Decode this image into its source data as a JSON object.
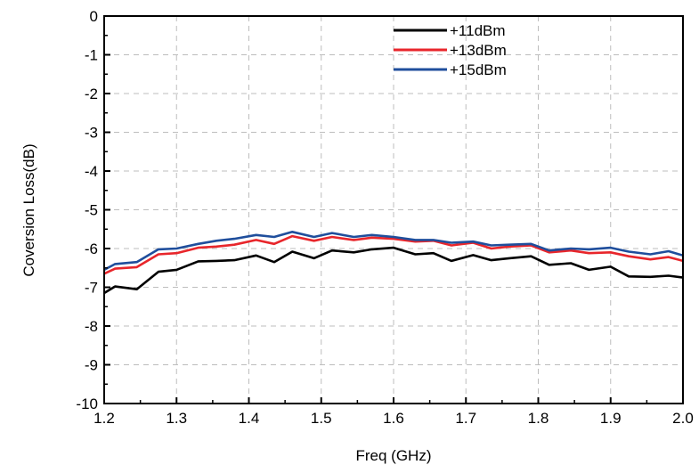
{
  "chart_data": {
    "type": "line",
    "title": "",
    "xlabel": "Freq (GHz)",
    "ylabel": "Coversion Loss(dB)",
    "xlim": [
      1.2,
      2.0
    ],
    "ylim": [
      -10,
      0
    ],
    "grid": true,
    "legend_position": "top-right",
    "x_ticks": [
      "1.2",
      "1.3",
      "1.4",
      "1.5",
      "1.6",
      "1.7",
      "1.8",
      "1.9",
      "2.0"
    ],
    "y_ticks": [
      "0",
      "-1",
      "-2",
      "-3",
      "-4",
      "-5",
      "-6",
      "-7",
      "-8",
      "-9",
      "-10"
    ],
    "x": [
      1.2,
      1.215,
      1.245,
      1.275,
      1.3,
      1.33,
      1.355,
      1.38,
      1.41,
      1.435,
      1.46,
      1.49,
      1.515,
      1.545,
      1.57,
      1.6,
      1.63,
      1.655,
      1.68,
      1.71,
      1.735,
      1.76,
      1.79,
      1.815,
      1.845,
      1.87,
      1.9,
      1.925,
      1.955,
      1.98,
      2.0
    ],
    "series": [
      {
        "name": "+11dBm",
        "color": "#000000",
        "values": [
          -7.15,
          -6.98,
          -7.05,
          -6.6,
          -6.55,
          -6.33,
          -6.32,
          -6.3,
          -6.18,
          -6.35,
          -6.08,
          -6.25,
          -6.05,
          -6.1,
          -6.02,
          -5.98,
          -6.15,
          -6.12,
          -6.32,
          -6.17,
          -6.3,
          -6.25,
          -6.2,
          -6.42,
          -6.38,
          -6.55,
          -6.47,
          -6.72,
          -6.73,
          -6.7,
          -6.75
        ]
      },
      {
        "name": "+13dBm",
        "color": "#e8262b",
        "values": [
          -6.65,
          -6.52,
          -6.48,
          -6.15,
          -6.12,
          -5.98,
          -5.95,
          -5.9,
          -5.78,
          -5.88,
          -5.68,
          -5.8,
          -5.7,
          -5.78,
          -5.72,
          -5.75,
          -5.82,
          -5.8,
          -5.92,
          -5.85,
          -6.0,
          -5.95,
          -5.92,
          -6.1,
          -6.05,
          -6.12,
          -6.1,
          -6.2,
          -6.28,
          -6.22,
          -6.32
        ]
      },
      {
        "name": "+15dBm",
        "color": "#1f4e9c",
        "values": [
          -6.55,
          -6.4,
          -6.35,
          -6.02,
          -6.0,
          -5.88,
          -5.8,
          -5.75,
          -5.65,
          -5.7,
          -5.57,
          -5.7,
          -5.6,
          -5.7,
          -5.65,
          -5.7,
          -5.78,
          -5.78,
          -5.85,
          -5.82,
          -5.92,
          -5.9,
          -5.88,
          -6.05,
          -6.0,
          -6.02,
          -5.98,
          -6.08,
          -6.15,
          -6.07,
          -6.18
        ]
      }
    ]
  }
}
